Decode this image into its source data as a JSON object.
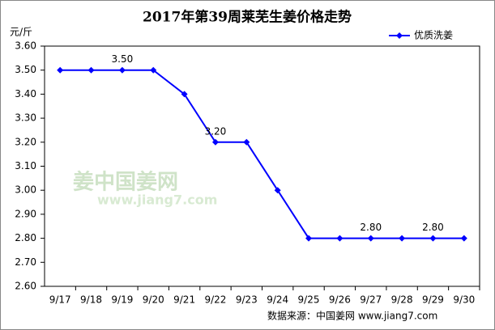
{
  "chart_data": {
    "type": "line",
    "title": "2017年第39周莱芜生姜价格走势",
    "y_unit": "元/斤",
    "categories": [
      "9/17",
      "9/18",
      "9/19",
      "9/20",
      "9/21",
      "9/22",
      "9/23",
      "9/24",
      "9/25",
      "9/26",
      "9/27",
      "9/28",
      "9/29",
      "9/30"
    ],
    "series": [
      {
        "name": "优质洗姜",
        "color": "#0000ff",
        "values": [
          3.5,
          3.5,
          3.5,
          3.5,
          3.4,
          3.2,
          3.2,
          3.0,
          2.8,
          2.8,
          2.8,
          2.8,
          2.8,
          2.8
        ],
        "value_labels": [
          null,
          null,
          "3.50",
          null,
          null,
          "3.20",
          null,
          null,
          null,
          null,
          "2.80",
          null,
          "2.80",
          null
        ]
      }
    ],
    "ylim": [
      2.6,
      3.6
    ],
    "yticks": [
      {
        "value": 2.6,
        "label": "2.60"
      },
      {
        "value": 2.7,
        "label": "2.70"
      },
      {
        "value": 2.8,
        "label": "2.80"
      },
      {
        "value": 2.9,
        "label": "2.90"
      },
      {
        "value": 3.0,
        "label": "3.00"
      },
      {
        "value": 3.1,
        "label": "3.10"
      },
      {
        "value": 3.2,
        "label": "3.20"
      },
      {
        "value": 3.3,
        "label": "3.30"
      },
      {
        "value": 3.4,
        "label": "3.40"
      },
      {
        "value": 3.5,
        "label": "3.50"
      },
      {
        "value": 3.6,
        "label": "3.60"
      }
    ],
    "grid": false,
    "legend": "top-right",
    "watermark": "姜中国姜网",
    "watermark_url": "www.jiang7.com",
    "source": "数据来源：中国姜网 www.jiang7.com"
  }
}
